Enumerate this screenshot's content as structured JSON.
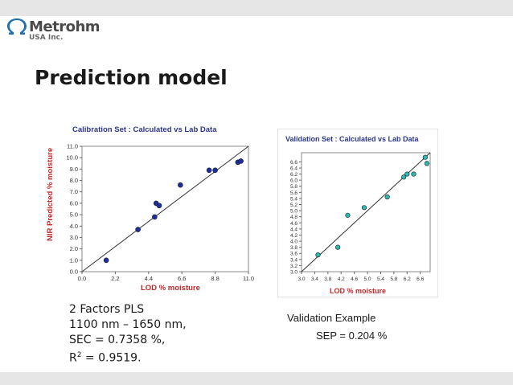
{
  "header": {
    "logo_name": "Metrohm",
    "logo_sub": "USA Inc.",
    "brand_color": "#1f6fb2"
  },
  "slide": {
    "title": "Prediction model"
  },
  "chart_data": [
    {
      "type": "scatter",
      "title": "Calibration Set : Calculated vs Lab Data",
      "xlabel": "LOD % moisture",
      "ylabel": "NIR Predicted % moisture",
      "xlim": [
        0.0,
        11.0
      ],
      "ylim": [
        0.0,
        11.0
      ],
      "x_ticks": [
        "0.0",
        "2.2",
        "4.4",
        "6.6",
        "8.8",
        "11.0"
      ],
      "y_ticks": [
        "0.0",
        "1.0",
        "2.0",
        "3.0",
        "4.0",
        "5.0",
        "6.0",
        "7.0",
        "8.0",
        "9.0",
        "10.0",
        "11.0"
      ],
      "grid": false,
      "reference_line": "y = x",
      "marker_color": "#1c2fa0",
      "points": [
        {
          "x": 1.6,
          "y": 1.0
        },
        {
          "x": 3.7,
          "y": 3.7
        },
        {
          "x": 4.8,
          "y": 4.8
        },
        {
          "x": 4.9,
          "y": 6.0
        },
        {
          "x": 5.1,
          "y": 5.8
        },
        {
          "x": 6.5,
          "y": 7.6
        },
        {
          "x": 8.4,
          "y": 8.9
        },
        {
          "x": 8.8,
          "y": 8.9
        },
        {
          "x": 10.3,
          "y": 9.6
        },
        {
          "x": 10.5,
          "y": 9.7
        }
      ]
    },
    {
      "type": "scatter",
      "title": "Validation Set : Calculated vs Lab Data",
      "xlabel": "LOD % moisture",
      "ylabel": "",
      "xlim": [
        3.0,
        6.9
      ],
      "ylim": [
        3.0,
        6.9
      ],
      "x_ticks": [
        "3.0",
        "3.4",
        "3.8",
        "4.2",
        "4.6",
        "5.0",
        "5.4",
        "5.8",
        "6.2",
        "6.6"
      ],
      "y_ticks": [
        "3.0",
        "3.2",
        "3.4",
        "3.6",
        "3.8",
        "4.0",
        "4.2",
        "4.4",
        "4.6",
        "4.8",
        "5.0",
        "5.2",
        "5.4",
        "5.6",
        "5.8",
        "6.0",
        "6.2",
        "6.4",
        "6.6"
      ],
      "grid": false,
      "reference_line": "y = x",
      "marker_color": "#2bb8b0",
      "points": [
        {
          "x": 3.5,
          "y": 3.55
        },
        {
          "x": 4.1,
          "y": 3.8
        },
        {
          "x": 4.4,
          "y": 4.85
        },
        {
          "x": 4.9,
          "y": 5.1
        },
        {
          "x": 5.6,
          "y": 5.45
        },
        {
          "x": 6.1,
          "y": 6.1
        },
        {
          "x": 6.2,
          "y": 6.2
        },
        {
          "x": 6.4,
          "y": 6.2
        },
        {
          "x": 6.75,
          "y": 6.75
        },
        {
          "x": 6.8,
          "y": 6.55
        }
      ]
    }
  ],
  "calibration_caption": {
    "line1": "2 Factors PLS",
    "line2": "1100 nm – 1650 nm,",
    "line3": "SEC = 0.7358 %,",
    "line4_prefix": "R",
    "line4_sup": "2",
    "line4_rest": " = 0.9519."
  },
  "validation_caption": {
    "line1": "Validation Example",
    "line2": "SEP = 0.204 %"
  }
}
